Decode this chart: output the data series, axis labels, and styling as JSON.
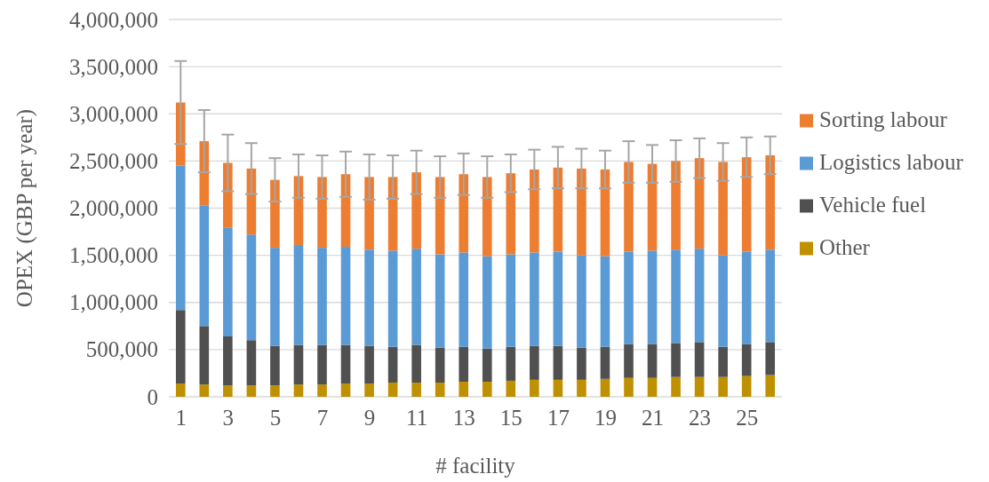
{
  "chart_data": {
    "type": "bar",
    "stacked": true,
    "xlabel": "# facility",
    "ylabel": "OPEX (GBP per year)",
    "x": [
      1,
      2,
      3,
      4,
      5,
      6,
      7,
      8,
      9,
      10,
      11,
      12,
      13,
      14,
      15,
      16,
      17,
      18,
      19,
      20,
      21,
      22,
      23,
      24,
      25,
      26
    ],
    "xlim": [
      0.5,
      26.5
    ],
    "xticks": [
      1,
      3,
      5,
      7,
      9,
      11,
      13,
      15,
      17,
      19,
      21,
      23,
      25
    ],
    "series": [
      {
        "name": "Other",
        "color": "#bf9000",
        "values": [
          140000,
          130000,
          120000,
          120000,
          120000,
          130000,
          130000,
          140000,
          140000,
          150000,
          150000,
          150000,
          160000,
          160000,
          170000,
          180000,
          180000,
          180000,
          190000,
          200000,
          200000,
          210000,
          210000,
          210000,
          220000,
          230000
        ]
      },
      {
        "name": "Vehicle fuel",
        "color": "#505050",
        "values": [
          780000,
          620000,
          520000,
          480000,
          420000,
          420000,
          420000,
          410000,
          400000,
          380000,
          400000,
          370000,
          370000,
          350000,
          360000,
          360000,
          360000,
          340000,
          340000,
          360000,
          360000,
          360000,
          370000,
          320000,
          340000,
          350000
        ]
      },
      {
        "name": "Logistics labour",
        "color": "#5b9bd5",
        "values": [
          1530000,
          1280000,
          1150000,
          1120000,
          1040000,
          1060000,
          1030000,
          1040000,
          1020000,
          1020000,
          1020000,
          990000,
          1000000,
          980000,
          980000,
          990000,
          1000000,
          980000,
          960000,
          980000,
          990000,
          990000,
          990000,
          970000,
          980000,
          980000
        ]
      },
      {
        "name": "Sorting labour",
        "color": "#ed7d31",
        "values": [
          670000,
          680000,
          690000,
          700000,
          720000,
          730000,
          750000,
          770000,
          770000,
          780000,
          810000,
          820000,
          830000,
          840000,
          860000,
          880000,
          890000,
          920000,
          920000,
          950000,
          920000,
          940000,
          960000,
          990000,
          1000000,
          1000000
        ],
        "errors": [
          440000,
          330000,
          300000,
          270000,
          230000,
          230000,
          230000,
          240000,
          240000,
          230000,
          230000,
          220000,
          220000,
          220000,
          200000,
          210000,
          220000,
          210000,
          200000,
          220000,
          200000,
          220000,
          210000,
          200000,
          210000,
          200000
        ]
      }
    ],
    "ylim": [
      0,
      4000000
    ],
    "yticks": [
      {
        "value": 0,
        "label": "0"
      },
      {
        "value": 500000,
        "label": "500,000"
      },
      {
        "value": 1000000,
        "label": "1,000,000"
      },
      {
        "value": 1500000,
        "label": "1,500,000"
      },
      {
        "value": 2000000,
        "label": "2,000,000"
      },
      {
        "value": 2500000,
        "label": "2,500,000"
      },
      {
        "value": 3000000,
        "label": "3,000,000"
      },
      {
        "value": 3500000,
        "label": "3,500,000"
      },
      {
        "value": 4000000,
        "label": "4,000,000"
      }
    ],
    "grid": "y",
    "legend": "right"
  }
}
